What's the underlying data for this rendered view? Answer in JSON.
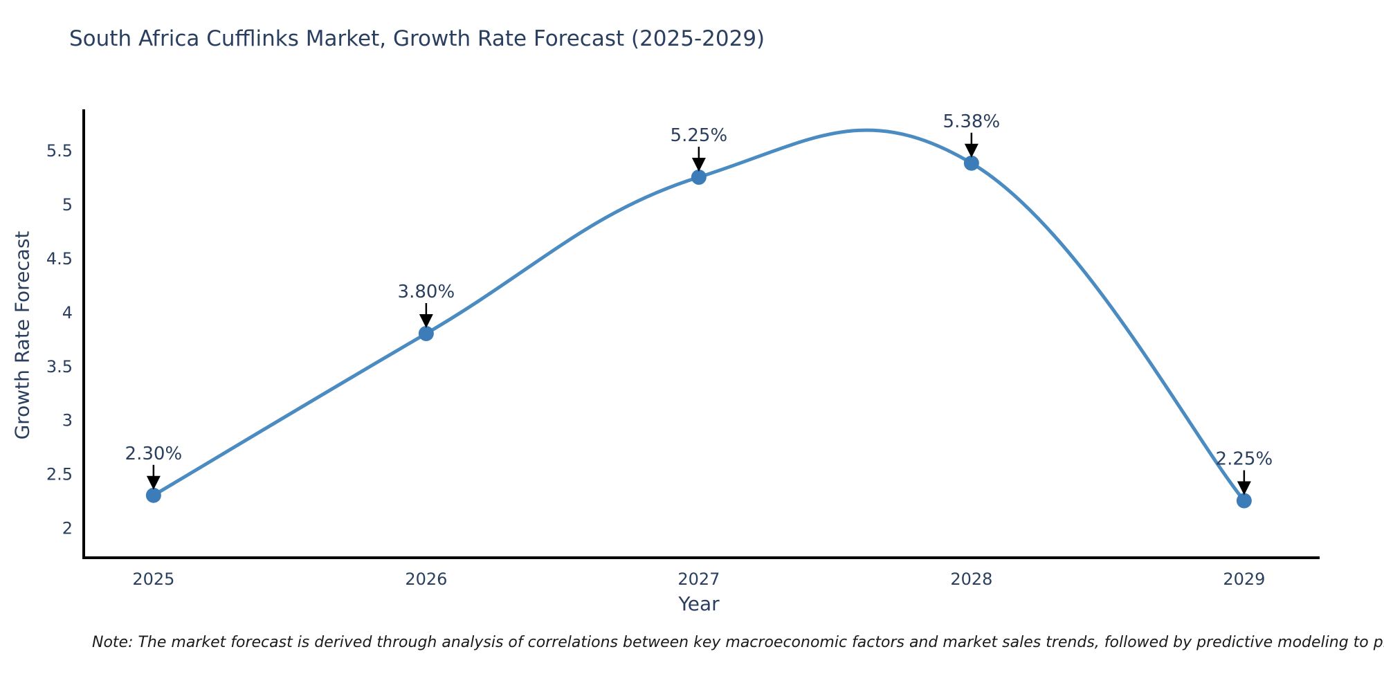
{
  "title": "South Africa Cufflinks Market, Growth Rate Forecast (2025-2029)",
  "note": "Note: The market forecast is derived through analysis of correlations between key macroeconomic factors and market sales trends, followed by predictive modeling to project future sales",
  "chart_data": {
    "type": "line",
    "line_shape": "spline",
    "title": "South Africa Cufflinks Market, Growth Rate Forecast (2025-2029)",
    "xlabel": "Year",
    "ylabel": "Growth Rate Forecast",
    "x": [
      2025,
      2026,
      2027,
      2028,
      2029
    ],
    "series": [
      {
        "name": "Growth Rate Forecast",
        "values": [
          2.3,
          3.8,
          5.25,
          5.38,
          2.25
        ]
      }
    ],
    "point_labels": [
      "2.30%",
      "3.80%",
      "5.25%",
      "5.38%",
      "2.25%"
    ],
    "x_ticks": [
      {
        "value": 2025,
        "label": "2025"
      },
      {
        "value": 2026,
        "label": "2026"
      },
      {
        "value": 2027,
        "label": "2027"
      },
      {
        "value": 2028,
        "label": "2028"
      },
      {
        "value": 2029,
        "label": "2029"
      }
    ],
    "y_ticks": [
      {
        "value": 2,
        "label": "2"
      },
      {
        "value": 2.5,
        "label": "2.5"
      },
      {
        "value": 3,
        "label": "3"
      },
      {
        "value": 3.5,
        "label": "3.5"
      },
      {
        "value": 4,
        "label": "4"
      },
      {
        "value": 4.5,
        "label": "4.5"
      },
      {
        "value": 5,
        "label": "5"
      },
      {
        "value": 5.5,
        "label": "5.5"
      }
    ],
    "xlim": [
      2024.744,
      2029.277
    ],
    "ylim": [
      1.721,
      5.879
    ],
    "grid": false,
    "legend": "none",
    "colors": {
      "line": "#4a8bc2",
      "marker": "#3c7cb8",
      "axis": "#000000",
      "text": "#2a3f5f",
      "annotation": "#000000",
      "background": "#ffffff"
    }
  }
}
